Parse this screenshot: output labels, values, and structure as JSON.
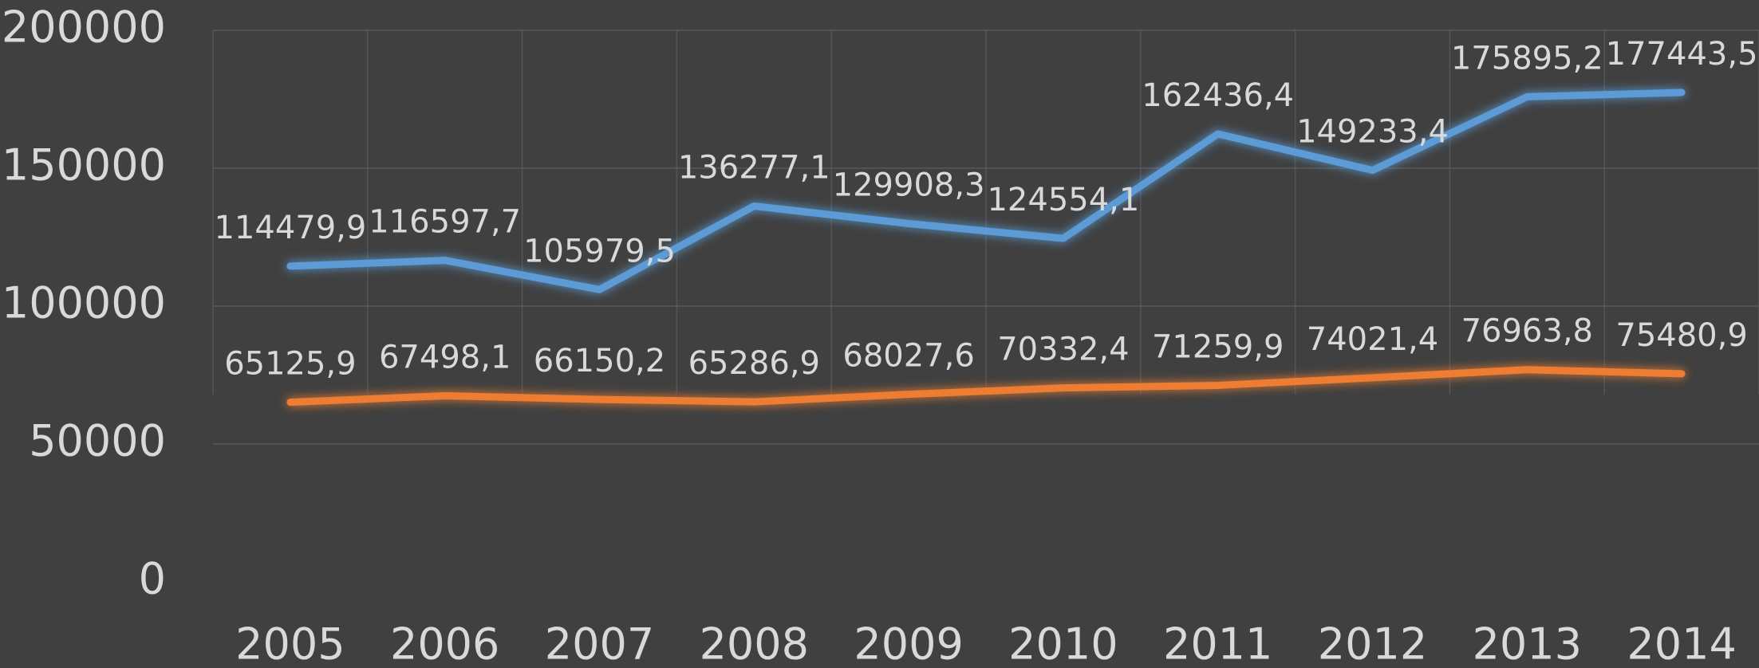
{
  "chart_data": {
    "type": "line",
    "categories": [
      "2005",
      "2006",
      "2007",
      "2008",
      "2009",
      "2010",
      "2011",
      "2012",
      "2013",
      "2014"
    ],
    "series": [
      {
        "color": "#5b9bd5",
        "values": [
          114479.9,
          116597.7,
          105979.5,
          136277.1,
          129908.3,
          124554.1,
          162436.4,
          149233.4,
          175895.2,
          177443.5
        ],
        "value_labels": [
          "114479,9",
          "116597,7",
          "105979,5",
          "136277,1",
          "129908,3",
          "124554,1",
          "162436,4",
          "149233,4",
          "175895,2",
          "177443,5"
        ]
      },
      {
        "color": "#ed7d31",
        "values": [
          65125.9,
          67498.1,
          66150.2,
          65286.9,
          68027.6,
          70332.4,
          71259.9,
          74021.4,
          76963.8,
          75480.9
        ],
        "value_labels": [
          "65125,9",
          "67498,1",
          "66150,2",
          "65286,9",
          "68027,6",
          "70332,4",
          "71259,9",
          "74021,4",
          "76963,8",
          "75480,9"
        ]
      }
    ],
    "ylim": [
      0,
      200000
    ],
    "yticks": [
      0,
      50000,
      100000,
      150000,
      200000
    ],
    "grid": true
  }
}
